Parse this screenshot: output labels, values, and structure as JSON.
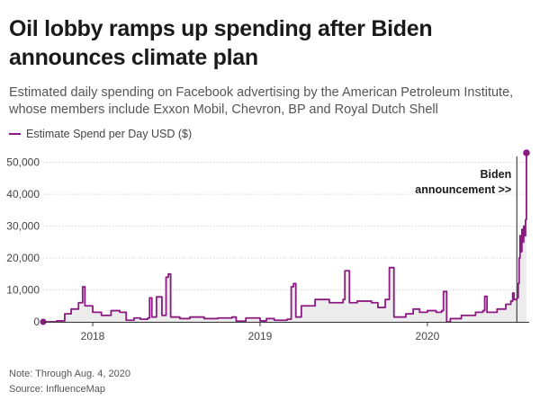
{
  "header": {
    "title": "Oil lobby ramps up spending after Biden announces climate plan",
    "subtitle": "Estimated daily spending on Facebook advertising by the American Petroleum Institute, whose members include Exxon Mobil, Chevron, BP and Royal Dutch Shell"
  },
  "footer": {
    "note": "Note: Through Aug. 4, 2020",
    "source": "Source: InfluenceMap"
  },
  "colors": {
    "line": "#8b1a82",
    "area": "#ececec",
    "grid": "#d6d6d6",
    "axis": "#333333"
  },
  "chart_data": {
    "type": "line",
    "title": "Oil lobby ramps up spending after Biden announces climate plan",
    "xlabel": "",
    "ylabel": "",
    "x_ticks": [
      "2018",
      "2019",
      "2020"
    ],
    "y_ticks": [
      0,
      10000,
      20000,
      30000,
      40000,
      50000
    ],
    "y_tick_labels": [
      "0",
      "10,000",
      "20,000",
      "30,000",
      "40,000",
      "50,000"
    ],
    "ylim": [
      0,
      53000
    ],
    "xlim": [
      "2017-09-15",
      "2020-08-10"
    ],
    "grid": true,
    "legend": "top-left",
    "annotation": {
      "date": "2020-07-14",
      "lines": [
        "Biden",
        "announcement >>"
      ]
    },
    "series": [
      {
        "name": "Estimate Spend per Day USD ($)",
        "points": [
          [
            "2017-09-15",
            0
          ],
          [
            "2017-10-15",
            300
          ],
          [
            "2017-11-01",
            2500
          ],
          [
            "2017-11-15",
            4000
          ],
          [
            "2017-12-01",
            6000
          ],
          [
            "2017-12-10",
            11000
          ],
          [
            "2017-12-15",
            5000
          ],
          [
            "2018-01-01",
            3000
          ],
          [
            "2018-01-20",
            2000
          ],
          [
            "2018-02-10",
            3500
          ],
          [
            "2018-03-01",
            3000
          ],
          [
            "2018-03-15",
            500
          ],
          [
            "2018-04-01",
            1200
          ],
          [
            "2018-04-15",
            800
          ],
          [
            "2018-05-01",
            1200
          ],
          [
            "2018-05-05",
            7500
          ],
          [
            "2018-05-10",
            1500
          ],
          [
            "2018-05-20",
            7800
          ],
          [
            "2018-06-01",
            2000
          ],
          [
            "2018-06-10",
            14000
          ],
          [
            "2018-06-15",
            15000
          ],
          [
            "2018-06-20",
            1500
          ],
          [
            "2018-07-10",
            1000
          ],
          [
            "2018-08-01",
            1500
          ],
          [
            "2018-09-01",
            1000
          ],
          [
            "2018-10-01",
            1200
          ],
          [
            "2018-11-01",
            1500
          ],
          [
            "2018-11-10",
            200
          ],
          [
            "2018-12-01",
            1200
          ],
          [
            "2019-01-01",
            300
          ],
          [
            "2019-01-15",
            1000
          ],
          [
            "2019-02-01",
            500
          ],
          [
            "2019-03-01",
            800
          ],
          [
            "2019-03-10",
            11000
          ],
          [
            "2019-03-15",
            12000
          ],
          [
            "2019-03-20",
            1500
          ],
          [
            "2019-04-01",
            5000
          ],
          [
            "2019-05-01",
            7000
          ],
          [
            "2019-06-01",
            6000
          ],
          [
            "2019-07-01",
            7000
          ],
          [
            "2019-07-05",
            16000
          ],
          [
            "2019-07-15",
            6000
          ],
          [
            "2019-08-01",
            6500
          ],
          [
            "2019-09-01",
            6000
          ],
          [
            "2019-09-15",
            4500
          ],
          [
            "2019-10-01",
            7000
          ],
          [
            "2019-10-10",
            17000
          ],
          [
            "2019-10-20",
            1500
          ],
          [
            "2019-11-15",
            2500
          ],
          [
            "2019-12-01",
            4000
          ],
          [
            "2019-12-15",
            3000
          ],
          [
            "2020-01-01",
            3500
          ],
          [
            "2020-01-20",
            3000
          ],
          [
            "2020-02-01",
            3500
          ],
          [
            "2020-02-05",
            9500
          ],
          [
            "2020-02-12",
            0
          ],
          [
            "2020-02-20",
            1000
          ],
          [
            "2020-03-15",
            2000
          ],
          [
            "2020-04-15",
            3000
          ],
          [
            "2020-05-01",
            3500
          ],
          [
            "2020-05-05",
            8000
          ],
          [
            "2020-05-10",
            3000
          ],
          [
            "2020-06-01",
            4000
          ],
          [
            "2020-06-20",
            5500
          ],
          [
            "2020-07-01",
            6500
          ],
          [
            "2020-07-05",
            9000
          ],
          [
            "2020-07-08",
            7000
          ],
          [
            "2020-07-14",
            7500
          ],
          [
            "2020-07-17",
            12000
          ],
          [
            "2020-07-19",
            20000
          ],
          [
            "2020-07-21",
            27000
          ],
          [
            "2020-07-23",
            22000
          ],
          [
            "2020-07-25",
            29000
          ],
          [
            "2020-07-27",
            25000
          ],
          [
            "2020-07-29",
            30000
          ],
          [
            "2020-07-31",
            27000
          ],
          [
            "2020-08-02",
            32000
          ],
          [
            "2020-08-04",
            53000
          ]
        ]
      }
    ]
  }
}
